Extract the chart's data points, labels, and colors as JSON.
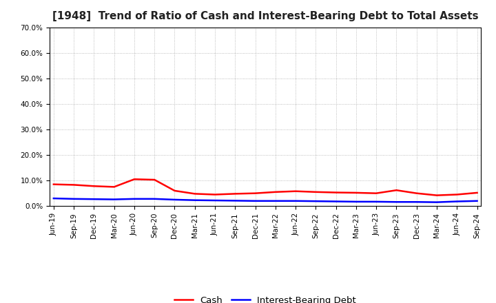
{
  "title": "[1948]  Trend of Ratio of Cash and Interest-Bearing Debt to Total Assets",
  "x_labels": [
    "Jun-19",
    "Sep-19",
    "Dec-19",
    "Mar-20",
    "Jun-20",
    "Sep-20",
    "Dec-20",
    "Mar-21",
    "Jun-21",
    "Sep-21",
    "Dec-21",
    "Mar-22",
    "Jun-22",
    "Sep-22",
    "Dec-22",
    "Mar-23",
    "Jun-23",
    "Sep-23",
    "Dec-23",
    "Mar-24",
    "Jun-24",
    "Sep-24"
  ],
  "cash": [
    8.5,
    8.3,
    7.8,
    7.5,
    10.5,
    10.3,
    6.0,
    4.8,
    4.5,
    4.8,
    5.0,
    5.5,
    5.8,
    5.5,
    5.3,
    5.2,
    5.0,
    6.2,
    5.0,
    4.2,
    4.5,
    5.2
  ],
  "interest_bearing_debt": [
    3.0,
    2.8,
    2.7,
    2.6,
    2.8,
    2.8,
    2.5,
    2.3,
    2.2,
    2.1,
    2.0,
    2.0,
    2.0,
    1.9,
    1.8,
    1.7,
    1.7,
    1.6,
    1.6,
    1.5,
    1.8,
    2.0
  ],
  "cash_color": "#FF0000",
  "debt_color": "#0000FF",
  "ylim": [
    0,
    70
  ],
  "yticks": [
    0,
    10,
    20,
    30,
    40,
    50,
    60,
    70
  ],
  "ytick_labels": [
    "0.0%",
    "10.0%",
    "20.0%",
    "30.0%",
    "40.0%",
    "50.0%",
    "60.0%",
    "70.0%"
  ],
  "background_color": "#FFFFFF",
  "plot_bg_color": "#FFFFFF",
  "grid_color": "#AAAAAA",
  "legend_cash": "Cash",
  "legend_debt": "Interest-Bearing Debt",
  "title_fontsize": 11,
  "tick_fontsize": 7.5,
  "legend_fontsize": 9.5
}
